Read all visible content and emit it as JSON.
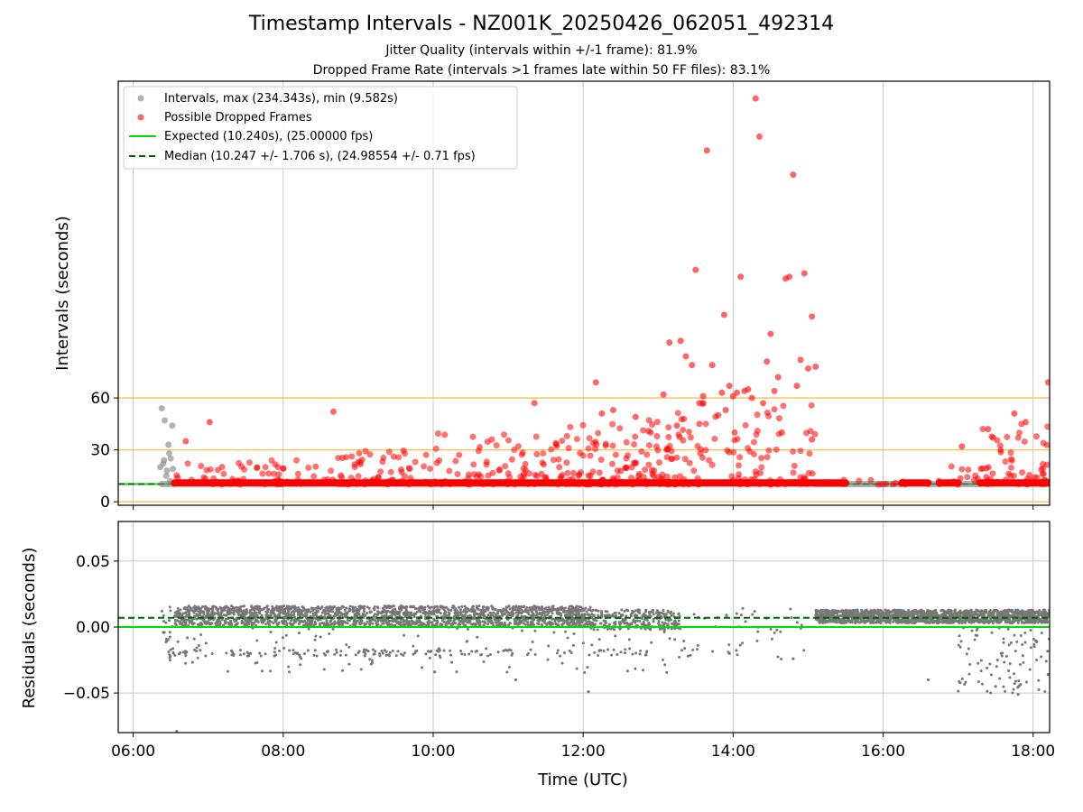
{
  "chart_data": {
    "title": "Timestamp Intervals - NZ001K_20250426_062051_492314",
    "subtitle_lines": [
      "Jitter Quality (intervals within +/-1 frame): 81.9%",
      "Dropped Frame Rate (intervals >1 frames late within 50 FF files): 83.1%"
    ],
    "x_tick_labels": [
      "06:00",
      "08:00",
      "10:00",
      "12:00",
      "14:00",
      "16:00",
      "18:00"
    ],
    "x_ticks_hours": [
      6,
      8,
      10,
      12,
      14,
      16,
      18
    ],
    "xlim_hours": [
      5.8,
      18.22
    ],
    "xlabel": "Time (UTC)",
    "colors": {
      "intervals": "#808080",
      "dropped": "#ff0000",
      "expected": "#00e000",
      "median": "#006400",
      "reference_lines": "#ffc04d",
      "grid": "#c8c8c8"
    },
    "top_panel": {
      "type": "scatter",
      "ylabel": "Intervals (seconds)",
      "ylim": [
        -2,
        243
      ],
      "y_tick_labels": [
        "0",
        "30",
        "60"
      ],
      "y_ticks": [
        0,
        30,
        60
      ],
      "reference_lines": [
        0,
        30,
        60
      ],
      "expected_value": 10.24,
      "median_value": 10.247,
      "legend_position": "upper-left",
      "legend": [
        {
          "label": "Intervals, max (234.343s), min (9.582s)",
          "kind": "marker",
          "color": "#808080"
        },
        {
          "label": "Possible Dropped Frames",
          "kind": "marker",
          "color": "#ff0000"
        },
        {
          "label": "Expected (10.240s), (25.00000 fps)",
          "kind": "line",
          "color": "#00e000"
        },
        {
          "label": "Median (10.247 +/- 1.706 s), (24.98554 +/- 0.71 fps)",
          "kind": "dashed",
          "color": "#006400"
        }
      ],
      "series": [
        {
          "name": "Intervals",
          "color": "#808080",
          "baseline_segments": [
            [
              6.38,
              6.55,
              10.24
            ],
            [
              15.1,
              16.25,
              10.24
            ],
            [
              16.6,
              16.75,
              10.24
            ],
            [
              17.0,
              17.3,
              10.24
            ]
          ],
          "points": [
            [
              6.38,
              54
            ],
            [
              6.42,
              47
            ],
            [
              6.47,
              33
            ],
            [
              6.5,
              25
            ],
            [
              6.4,
              22
            ],
            [
              6.45,
              18
            ],
            [
              6.52,
              44
            ],
            [
              6.44,
              15
            ],
            [
              6.36,
              20
            ],
            [
              6.48,
              28
            ],
            [
              6.41,
              24
            ],
            [
              6.49,
              12
            ],
            [
              6.53,
              19
            ],
            [
              7.3,
              10.2
            ],
            [
              9.5,
              10.3
            ],
            [
              12.2,
              10.1
            ],
            [
              14.2,
              10.2
            ],
            [
              15.5,
              10.3
            ],
            [
              16.0,
              10.2
            ]
          ]
        },
        {
          "name": "Possible Dropped Frames",
          "color": "#ff0000",
          "baseline_segments": [
            [
              6.55,
              15.1,
              10.9
            ],
            [
              15.12,
              15.5,
              10.9
            ],
            [
              16.25,
              16.6,
              10.9
            ],
            [
              16.75,
              17.0,
              10.9
            ],
            [
              17.3,
              18.22,
              10.9
            ]
          ],
          "points": [
            [
              6.7,
              35
            ],
            [
              7.02,
              46
            ],
            [
              8.67,
              52
            ],
            [
              11.35,
              57
            ],
            [
              12.17,
              69
            ],
            [
              12.25,
              51
            ],
            [
              12.4,
              53
            ],
            [
              12.7,
              49
            ],
            [
              13.07,
              62
            ],
            [
              13.15,
              92
            ],
            [
              13.3,
              93
            ],
            [
              13.37,
              84
            ],
            [
              13.45,
              79
            ],
            [
              13.5,
              134
            ],
            [
              13.55,
              57
            ],
            [
              13.6,
              61
            ],
            [
              13.65,
              203
            ],
            [
              13.72,
              79
            ],
            [
              13.8,
              50
            ],
            [
              13.85,
              63
            ],
            [
              13.88,
              108
            ],
            [
              13.95,
              67
            ],
            [
              14.0,
              61
            ],
            [
              14.05,
              63
            ],
            [
              14.1,
              130
            ],
            [
              14.15,
              64
            ],
            [
              14.2,
              65
            ],
            [
              14.25,
              60
            ],
            [
              14.3,
              233
            ],
            [
              14.35,
              211
            ],
            [
              14.45,
              81
            ],
            [
              14.5,
              97
            ],
            [
              14.55,
              64
            ],
            [
              14.6,
              72
            ],
            [
              14.7,
              129
            ],
            [
              14.75,
              130
            ],
            [
              14.8,
              189
            ],
            [
              14.85,
              67
            ],
            [
              14.9,
              82
            ],
            [
              14.95,
              132
            ],
            [
              15.0,
              77
            ],
            [
              15.05,
              107
            ],
            [
              15.1,
              78
            ],
            [
              18.2,
              69
            ],
            [
              17.9,
              46
            ],
            [
              17.75,
              51
            ],
            [
              17.4,
              42
            ],
            [
              17.05,
              32
            ],
            [
              14.02,
              40
            ],
            [
              13.9,
              53
            ],
            [
              14.4,
              57
            ],
            [
              14.65,
              40
            ],
            [
              13.55,
              45
            ],
            [
              12.9,
              40
            ],
            [
              13.25,
              44
            ],
            [
              15.05,
              36
            ]
          ],
          "cloud_ranges": [
            [
              6.55,
              8.6,
              10,
              24
            ],
            [
              8.6,
              10.0,
              10,
              30
            ],
            [
              10.0,
              11.5,
              10,
              40
            ],
            [
              11.5,
              12.5,
              10,
              45
            ],
            [
              12.5,
              13.2,
              10,
              50
            ],
            [
              13.2,
              15.1,
              10,
              60
            ],
            [
              15.1,
              16.9,
              10,
              13
            ],
            [
              16.9,
              17.3,
              10,
              25
            ],
            [
              17.3,
              18.22,
              10,
              48
            ]
          ],
          "cloud_density": [
            70,
            70,
            80,
            80,
            70,
            110,
            20,
            12,
            60
          ]
        }
      ]
    },
    "bottom_panel": {
      "type": "scatter",
      "ylabel": "Residuals (seconds)",
      "ylim": [
        -0.08,
        0.08
      ],
      "y_tick_labels": [
        "0.05",
        "0.00",
        "−0.05"
      ],
      "y_ticks": [
        0.05,
        0.0,
        -0.05
      ],
      "expected_value": 0.0,
      "median_value": 0.007,
      "series": [
        {
          "name": "Residuals",
          "color": "#777777",
          "bands": [
            {
              "x_range": [
                6.55,
                12.1
              ],
              "y_range": [
                0.001,
                0.016
              ],
              "count": 1900
            },
            {
              "x_range": [
                12.1,
                13.3
              ],
              "y_range": [
                -0.002,
                0.013
              ],
              "count": 260
            },
            {
              "x_range": [
                15.1,
                18.22
              ],
              "y_range": [
                0.003,
                0.013
              ],
              "count": 1500
            }
          ],
          "scatter": [
            {
              "x_range": [
                6.55,
                12.9
              ],
              "y_range": [
                -0.022,
                -0.017
              ],
              "count": 150
            },
            {
              "x_range": [
                6.38,
                13.3
              ],
              "y_range": [
                -0.035,
                0.005
              ],
              "count": 130
            },
            {
              "x_range": [
                13.3,
                15.0
              ],
              "y_range": [
                -0.025,
                0.015
              ],
              "count": 45
            },
            {
              "x_range": [
                17.0,
                18.22
              ],
              "y_range": [
                -0.05,
                0.0
              ],
              "count": 90
            },
            {
              "x_range": [
                6.38,
                6.55
              ],
              "y_range": [
                -0.025,
                0.016
              ],
              "count": 20
            }
          ],
          "points": [
            [
              6.58,
              -0.079
            ],
            [
              12.07,
              -0.049
            ],
            [
              17.8,
              -0.051
            ],
            [
              17.5,
              -0.045
            ],
            [
              10.02,
              -0.034
            ],
            [
              11.1,
              -0.04
            ],
            [
              16.6,
              -0.04
            ],
            [
              18.2,
              -0.036
            ],
            [
              13.4,
              -0.022
            ],
            [
              13.95,
              -0.02
            ],
            [
              14.8,
              -0.024
            ]
          ]
        }
      ]
    }
  }
}
